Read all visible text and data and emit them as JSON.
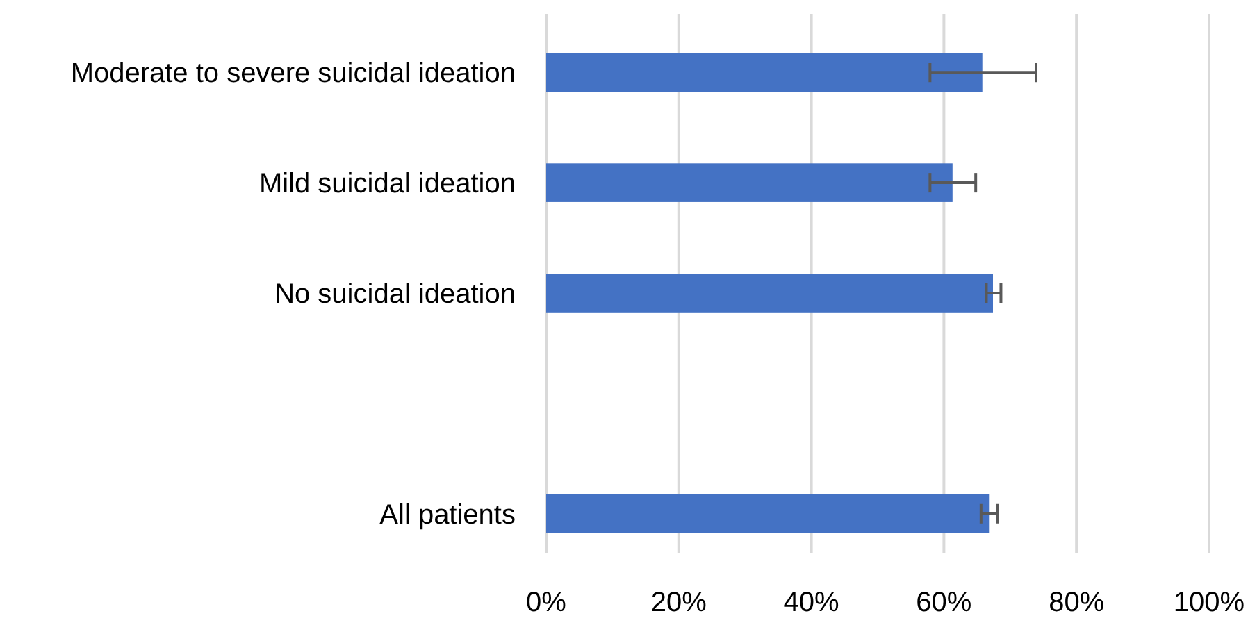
{
  "chart_data": {
    "type": "bar",
    "orientation": "horizontal",
    "categories": [
      "Moderate to severe suicidal ideation",
      "Mild suicidal ideation",
      "No suicidal ideation",
      null,
      "All patients"
    ],
    "values": [
      65.8,
      61.3,
      67.4,
      null,
      66.8
    ],
    "errors": [
      [
        57.9,
        73.9
      ],
      [
        57.9,
        64.8
      ],
      [
        66.4,
        68.6
      ],
      null,
      [
        65.6,
        68.1
      ]
    ],
    "color": "#4472c4",
    "xlim": [
      0,
      100
    ],
    "xticks": [
      {
        "value": 0,
        "label": "0%"
      },
      {
        "value": 20,
        "label": "20%"
      },
      {
        "value": 40,
        "label": "40%"
      },
      {
        "value": 60,
        "label": "60%"
      },
      {
        "value": 80,
        "label": "80%"
      },
      {
        "value": 100,
        "label": "100%"
      }
    ],
    "grid": "x"
  }
}
